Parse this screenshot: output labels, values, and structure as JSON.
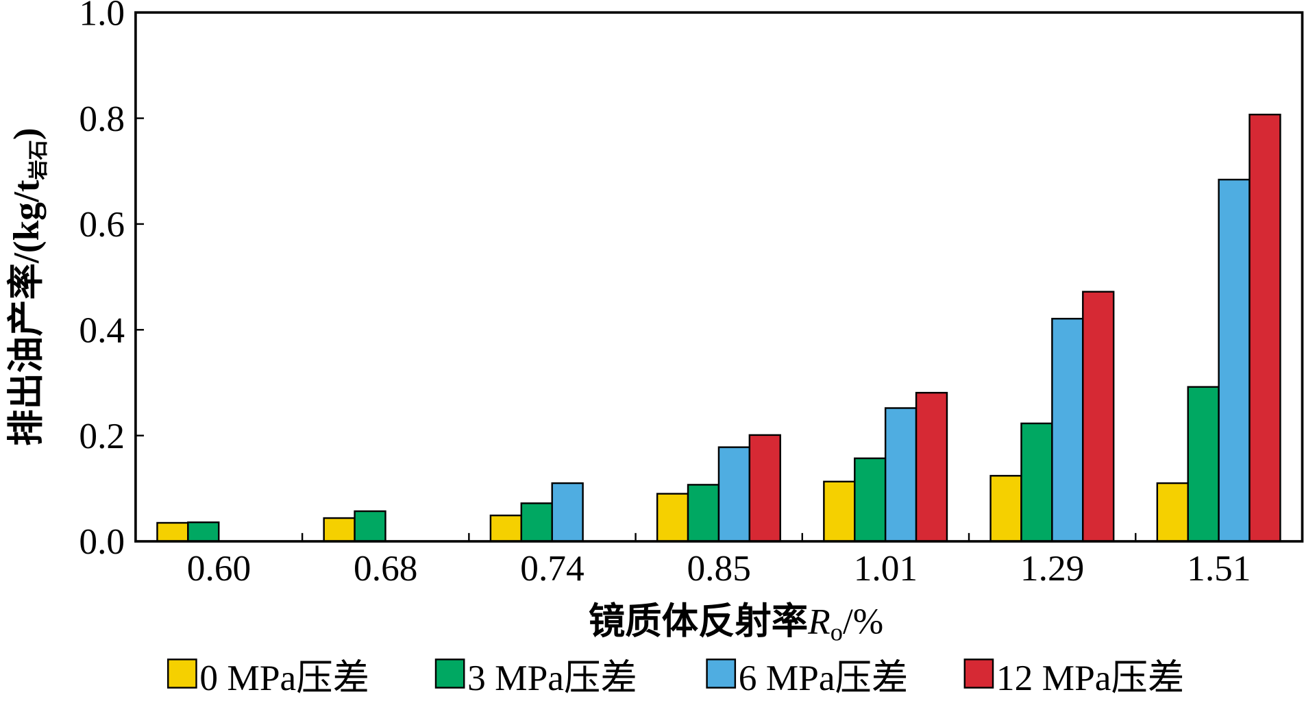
{
  "chart_data": {
    "type": "bar",
    "title": "",
    "xlabel": {
      "main": "镜质体反射率",
      "var": "R",
      "sub": "o",
      "unit": "/%"
    },
    "ylabel": {
      "main": "排出油产率/(kg/t",
      "sub": "岩石",
      "end": ")"
    },
    "ylim": [
      0,
      1.0
    ],
    "yticks": [
      "0.0",
      "0.2",
      "0.4",
      "0.6",
      "0.8",
      "1.0"
    ],
    "categories": [
      "0.60",
      "0.68",
      "0.74",
      "0.85",
      "1.01",
      "1.29",
      "1.51"
    ],
    "series": [
      {
        "name": "0 MPa压差",
        "color": "#f5d000",
        "values": [
          0.035,
          0.044,
          0.049,
          0.09,
          0.113,
          0.124,
          0.11
        ]
      },
      {
        "name": "3 MPa压差",
        "color": "#00a862",
        "values": [
          0.036,
          0.057,
          0.072,
          0.107,
          0.157,
          0.223,
          0.292
        ]
      },
      {
        "name": "6 MPa压差",
        "color": "#4fade1",
        "values": [
          null,
          null,
          0.11,
          0.178,
          0.252,
          0.421,
          0.684
        ]
      },
      {
        "name": "12 MPa压差",
        "color": "#d62934",
        "values": [
          null,
          null,
          null,
          0.201,
          0.281,
          0.472,
          0.807
        ]
      }
    ],
    "legend_position": "bottom",
    "grid": false
  }
}
